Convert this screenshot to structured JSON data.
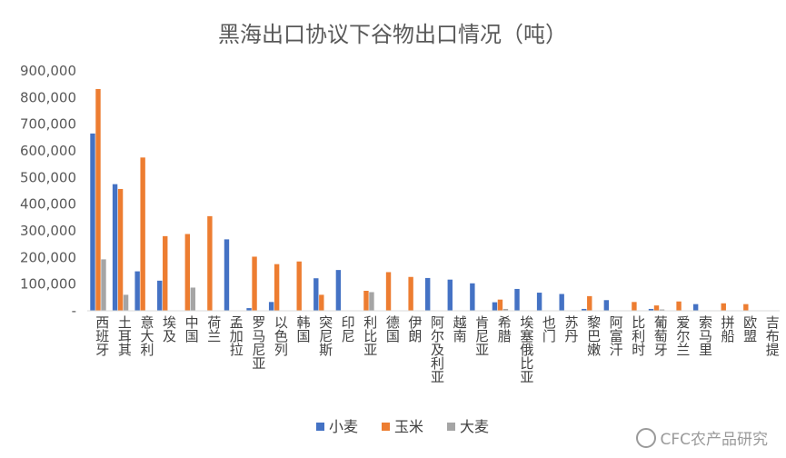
{
  "chart_data": {
    "type": "bar",
    "title": "黑海出口协议下谷物出口情况（吨）",
    "ylim": [
      0,
      900000
    ],
    "yticks": [
      "-",
      "100,000",
      "200,000",
      "300,000",
      "400,000",
      "500,000",
      "600,000",
      "700,000",
      "800,000",
      "900,000"
    ],
    "grid": false,
    "legend_position": "bottom",
    "categories": [
      "西班牙",
      "土耳其",
      "意大利",
      "埃及",
      "中国",
      "荷兰",
      "孟加拉",
      "罗马尼亚",
      "以色列",
      "韩国",
      "突尼斯",
      "印尼",
      "利比亚",
      "德国",
      "伊朗",
      "阿尔及利亚",
      "越南",
      "肯尼亚",
      "希腊",
      "埃塞俄比亚",
      "也门",
      "苏丹",
      "黎巴嫩",
      "阿富汗",
      "比利时",
      "葡萄牙",
      "爱尔兰",
      "索马里",
      "拼船",
      "欧盟",
      "吉布提"
    ],
    "series": [
      {
        "name": "小麦",
        "color": "#4472C4",
        "values": [
          665000,
          475000,
          148000,
          113000,
          0,
          0,
          268000,
          10000,
          33000,
          0,
          122000,
          153000,
          0,
          0,
          0,
          123000,
          117000,
          103000,
          32000,
          82000,
          68000,
          63000,
          7000,
          40000,
          0,
          7000,
          0,
          25000,
          0,
          0,
          0
        ]
      },
      {
        "name": "玉米",
        "color": "#ED7D31",
        "values": [
          832000,
          457000,
          575000,
          280000,
          288000,
          355000,
          0,
          203000,
          175000,
          185000,
          60000,
          0,
          75000,
          145000,
          127000,
          0,
          0,
          0,
          42000,
          0,
          0,
          0,
          55000,
          0,
          33000,
          20000,
          35000,
          0,
          28000,
          25000,
          0
        ]
      },
      {
        "name": "大麦",
        "color": "#A5A5A5",
        "values": [
          193000,
          60000,
          0,
          0,
          87000,
          0,
          0,
          0,
          0,
          0,
          0,
          0,
          70000,
          0,
          0,
          0,
          0,
          0,
          7000,
          0,
          0,
          0,
          0,
          0,
          0,
          5000,
          0,
          0,
          0,
          0,
          0
        ]
      }
    ]
  },
  "watermark": "CFC农产品研究"
}
